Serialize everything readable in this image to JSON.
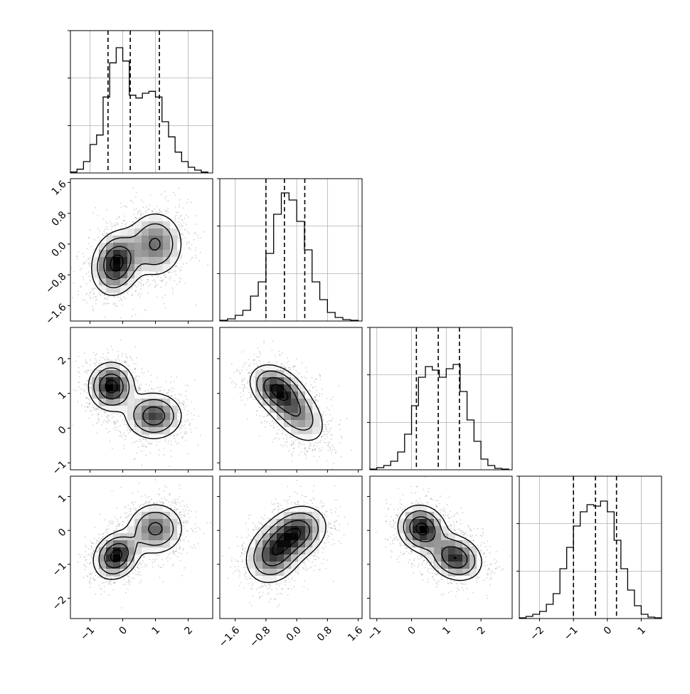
{
  "chart_data": {
    "type": "corner",
    "title": "",
    "dimensions": [
      {
        "range": [
          -1.6,
          2.75
        ],
        "ticks": [
          -1,
          0,
          1,
          2
        ],
        "tick_labels": [
          "−1",
          "0",
          "1",
          "2"
        ],
        "quantiles": [
          -0.45,
          0.23,
          1.12
        ],
        "hist_bins": [
          -1.6,
          -1.4,
          -1.2,
          -1.0,
          -0.8,
          -0.6,
          -0.4,
          -0.2,
          0.0,
          0.2,
          0.4,
          0.6,
          0.8,
          1.0,
          1.2,
          1.4,
          1.6,
          1.8,
          2.0,
          2.2,
          2.4,
          2.6
        ],
        "hist_counts": [
          1,
          4,
          12,
          30,
          40,
          80,
          116,
          132,
          118,
          82,
          79,
          84,
          86,
          80,
          54,
          38,
          22,
          12,
          6,
          3,
          1
        ],
        "hist_max": 150
      },
      {
        "range": [
          -2.0,
          1.7
        ],
        "ticks": [
          -1.6,
          -0.8,
          0.0,
          0.8,
          1.6
        ],
        "tick_labels": [
          "−1.6",
          "−0.8",
          "0.0",
          "0.8",
          "1.6"
        ],
        "quantiles": [
          -0.8,
          -0.32,
          0.21
        ],
        "hist_bins": [
          -2.0,
          -1.8,
          -1.6,
          -1.4,
          -1.2,
          -1.0,
          -0.8,
          -0.6,
          -0.4,
          -0.2,
          0.0,
          0.2,
          0.4,
          0.6,
          0.8,
          1.0,
          1.2,
          1.4,
          1.6
        ],
        "hist_counts": [
          1,
          3,
          8,
          15,
          35,
          55,
          95,
          150,
          180,
          170,
          140,
          100,
          55,
          30,
          12,
          5,
          2,
          1
        ],
        "hist_max": 200
      },
      {
        "range": [
          -1.2,
          2.9
        ],
        "ticks": [
          -1,
          0,
          1,
          2
        ],
        "tick_labels": [
          "−1",
          "0",
          "1",
          "2"
        ],
        "quantiles": [
          0.14,
          0.77,
          1.38
        ],
        "hist_bins": [
          -1.2,
          -1.0,
          -0.8,
          -0.6,
          -0.4,
          -0.2,
          0.0,
          0.2,
          0.4,
          0.6,
          0.8,
          1.0,
          1.2,
          1.4,
          1.6,
          1.8,
          2.0,
          2.2,
          2.4,
          2.6,
          2.8
        ],
        "hist_counts": [
          1,
          3,
          6,
          12,
          25,
          50,
          90,
          130,
          145,
          140,
          130,
          142,
          148,
          110,
          70,
          40,
          15,
          6,
          2,
          1
        ],
        "hist_max": 200
      },
      {
        "range": [
          -2.6,
          1.6
        ],
        "ticks": [
          -2,
          -1,
          0,
          1
        ],
        "tick_labels": [
          "−2",
          "−1",
          "0",
          "1"
        ],
        "quantiles": [
          -1.0,
          -0.35,
          0.27
        ],
        "hist_bins": [
          -2.6,
          -2.4,
          -2.2,
          -2.0,
          -1.8,
          -1.6,
          -1.4,
          -1.2,
          -1.0,
          -0.8,
          -0.6,
          -0.4,
          -0.2,
          0.0,
          0.2,
          0.4,
          0.6,
          0.8,
          1.0,
          1.2,
          1.4,
          1.6
        ],
        "hist_counts": [
          1,
          3,
          6,
          10,
          20,
          35,
          70,
          100,
          130,
          150,
          160,
          158,
          165,
          150,
          110,
          70,
          40,
          18,
          6,
          2,
          1
        ],
        "hist_max": 200
      }
    ],
    "pairs": [
      {
        "row": 1,
        "col": 0,
        "modes": [
          {
            "x": -0.2,
            "y": -0.5,
            "sx": 0.38,
            "sy": 0.42,
            "rho": 0.15,
            "w": 0.55
          },
          {
            "x": 1.0,
            "y": 0.0,
            "sx": 0.45,
            "sy": 0.45,
            "rho": 0.0,
            "w": 0.45
          }
        ]
      },
      {
        "row": 2,
        "col": 0,
        "modes": [
          {
            "x": -0.35,
            "y": 1.2,
            "sx": 0.35,
            "sy": 0.35,
            "rho": 0.0,
            "w": 0.5
          },
          {
            "x": 0.95,
            "y": 0.35,
            "sx": 0.45,
            "sy": 0.35,
            "rho": 0.0,
            "w": 0.5
          }
        ]
      },
      {
        "row": 2,
        "col": 1,
        "modes": [
          {
            "x": -0.55,
            "y": 1.15,
            "sx": 0.35,
            "sy": 0.35,
            "rho": -0.3,
            "w": 0.45
          },
          {
            "x": -0.05,
            "y": 0.5,
            "sx": 0.42,
            "sy": 0.5,
            "rho": -0.5,
            "w": 0.55
          }
        ]
      },
      {
        "row": 3,
        "col": 0,
        "modes": [
          {
            "x": -0.2,
            "y": -0.75,
            "sx": 0.35,
            "sy": 0.35,
            "rho": 0.2,
            "w": 0.5
          },
          {
            "x": 1.0,
            "y": 0.05,
            "sx": 0.45,
            "sy": 0.4,
            "rho": 0.0,
            "w": 0.5
          }
        ]
      },
      {
        "row": 3,
        "col": 1,
        "modes": [
          {
            "x": -0.6,
            "y": -0.7,
            "sx": 0.38,
            "sy": 0.45,
            "rho": 0.2,
            "w": 0.5
          },
          {
            "x": 0.0,
            "y": -0.05,
            "sx": 0.4,
            "sy": 0.4,
            "rho": 0.2,
            "w": 0.5
          }
        ]
      },
      {
        "row": 3,
        "col": 2,
        "modes": [
          {
            "x": 0.3,
            "y": 0.05,
            "sx": 0.35,
            "sy": 0.35,
            "rho": -0.1,
            "w": 0.5
          },
          {
            "x": 1.25,
            "y": -0.8,
            "sx": 0.4,
            "sy": 0.35,
            "rho": -0.2,
            "w": 0.5
          }
        ]
      }
    ],
    "diag_y_grid_fraction": [
      0.333,
      0.667,
      1.0
    ],
    "grid": true,
    "legend": "none",
    "colors": {
      "line": "#000000",
      "grid": "#b0b0b0",
      "scatter": "#7f7f7f",
      "density_dark": "#000000",
      "density_light": "#ffffff"
    }
  }
}
